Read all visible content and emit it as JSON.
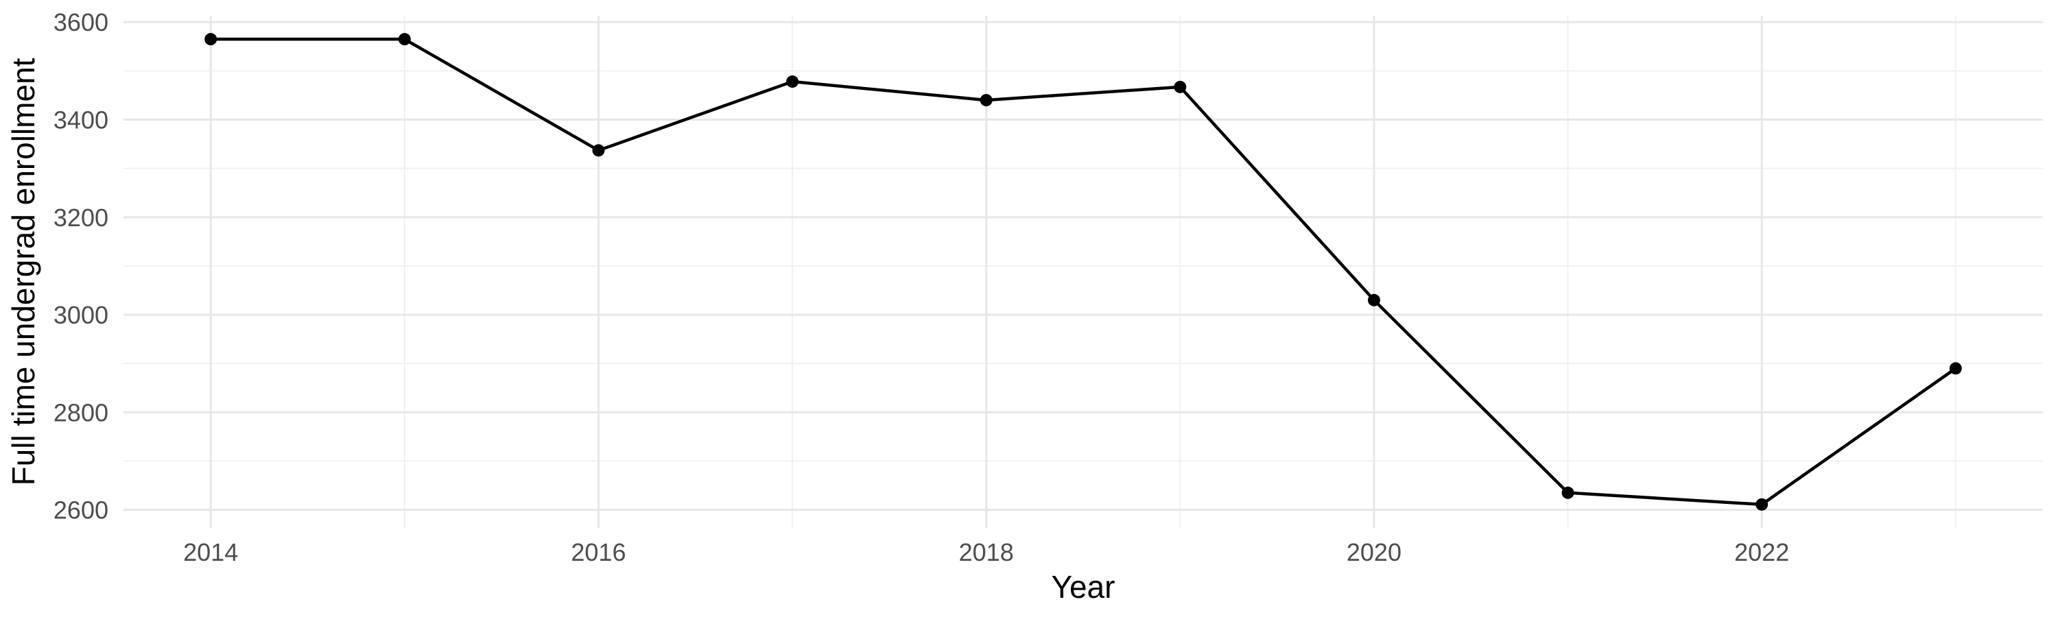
{
  "chart_data": {
    "type": "line",
    "title": "",
    "xlabel": "Year",
    "ylabel": "Full time undergrad enrollment",
    "x": [
      2014,
      2015,
      2016,
      2017,
      2018,
      2019,
      2020,
      2021,
      2022,
      2023
    ],
    "series": [
      {
        "name": "Full time undergrad enrollment",
        "values": [
          3565,
          3565,
          3337,
          3478,
          3440,
          3467,
          3030,
          2635,
          2611,
          2890
        ]
      }
    ],
    "x_major_ticks": [
      2014,
      2016,
      2018,
      2020,
      2022
    ],
    "x_minor_ticks": [
      2015,
      2017,
      2019,
      2021,
      2023
    ],
    "y_major_ticks": [
      2600,
      2800,
      3000,
      3200,
      3400,
      3600
    ],
    "y_minor_ticks": [
      2700,
      2900,
      3100,
      3300,
      3500
    ],
    "xlim": [
      2013.55,
      2023.45
    ],
    "ylim": [
      2563,
      3613
    ],
    "grid": "on",
    "legend": "none",
    "colors": {
      "line": "#000000",
      "point": "#000000",
      "grid_major": "#E7E7E7",
      "grid_minor": "#F1F1F1",
      "tick_label": "#4D4D4D",
      "axis_title": "#000000",
      "background": "#FFFFFF"
    }
  }
}
